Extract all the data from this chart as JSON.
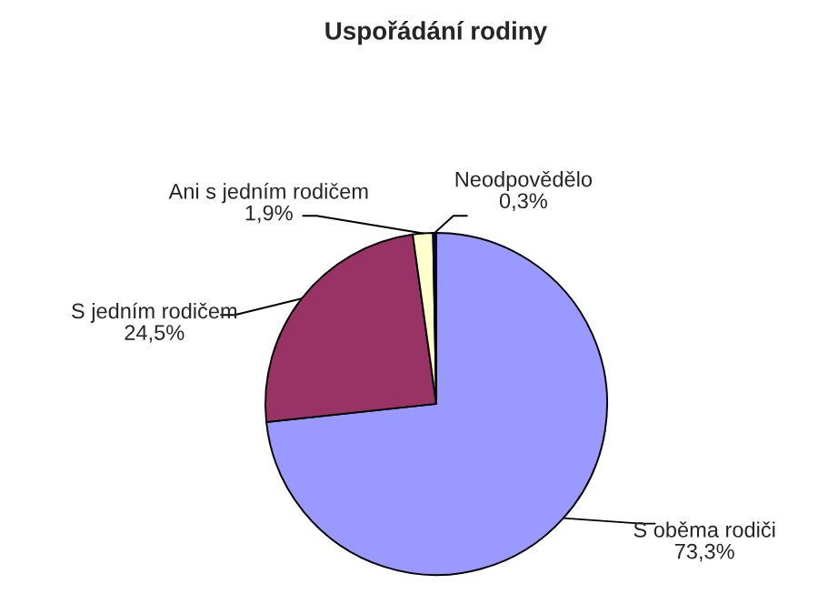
{
  "chart_data": {
    "type": "pie",
    "title": "Uspořádání rodiny",
    "categories": [
      "S oběma rodiči",
      "S jedním rodičem",
      "Ani s jedním rodičem",
      "Neodpovědělo"
    ],
    "values": [
      73.3,
      24.5,
      1.9,
      0.3
    ],
    "value_labels": [
      "73,3%",
      "24,5%",
      "1,9%",
      "0,3%"
    ],
    "colors": [
      "#9999ff",
      "#993366",
      "#ffffcc",
      "#000080"
    ],
    "legend": false
  }
}
